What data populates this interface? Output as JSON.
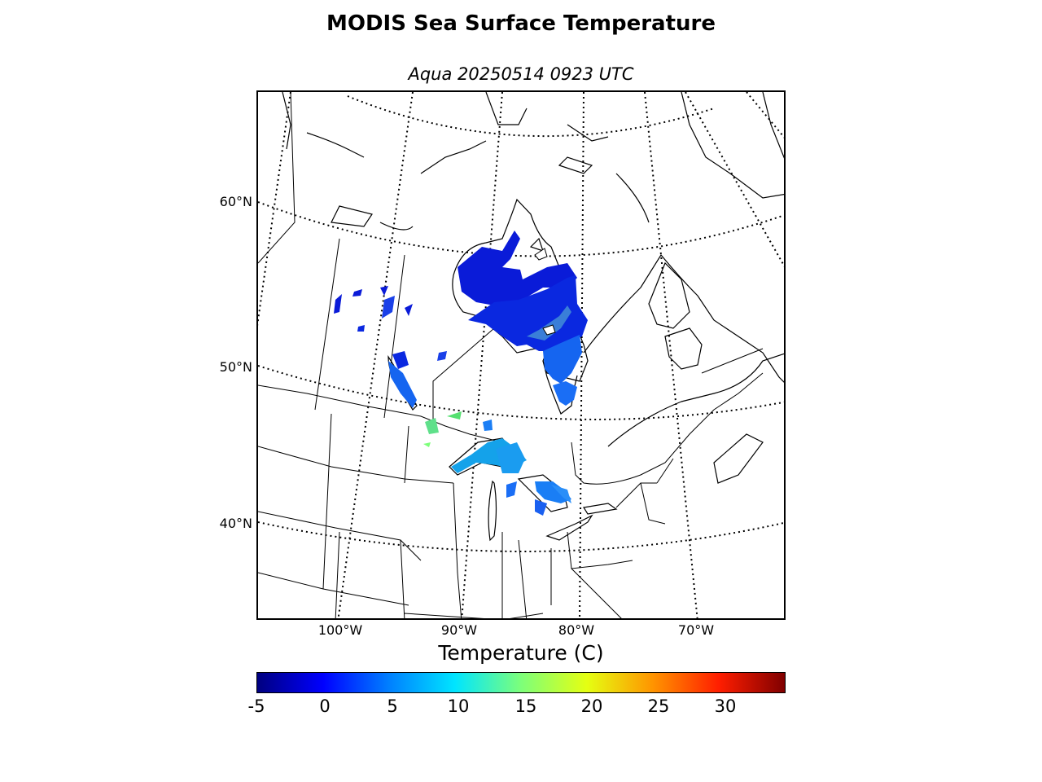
{
  "figure": {
    "title": "MODIS Sea Surface Temperature",
    "subtitle": "Aqua 20250514 0923 UTC"
  },
  "map": {
    "lat_labels": [
      "60°N",
      "50°N",
      "40°N"
    ],
    "lon_labels": [
      "100°W",
      "90°W",
      "80°W",
      "70°W"
    ],
    "graticule": "dotted",
    "projection_region": "Central and Eastern Canada / Great Lakes / Hudson Bay"
  },
  "colorbar": {
    "label": "Temperature (C)",
    "min": -5,
    "max": 34,
    "ticks": [
      "-5",
      "0",
      "5",
      "10",
      "15",
      "20",
      "25",
      "30"
    ],
    "colormap": "jet",
    "colors": [
      "#000080",
      "#0000ff",
      "#0080ff",
      "#00e5ff",
      "#7dff7a",
      "#e5ff12",
      "#ff9400",
      "#ff1e00",
      "#800000"
    ]
  }
}
